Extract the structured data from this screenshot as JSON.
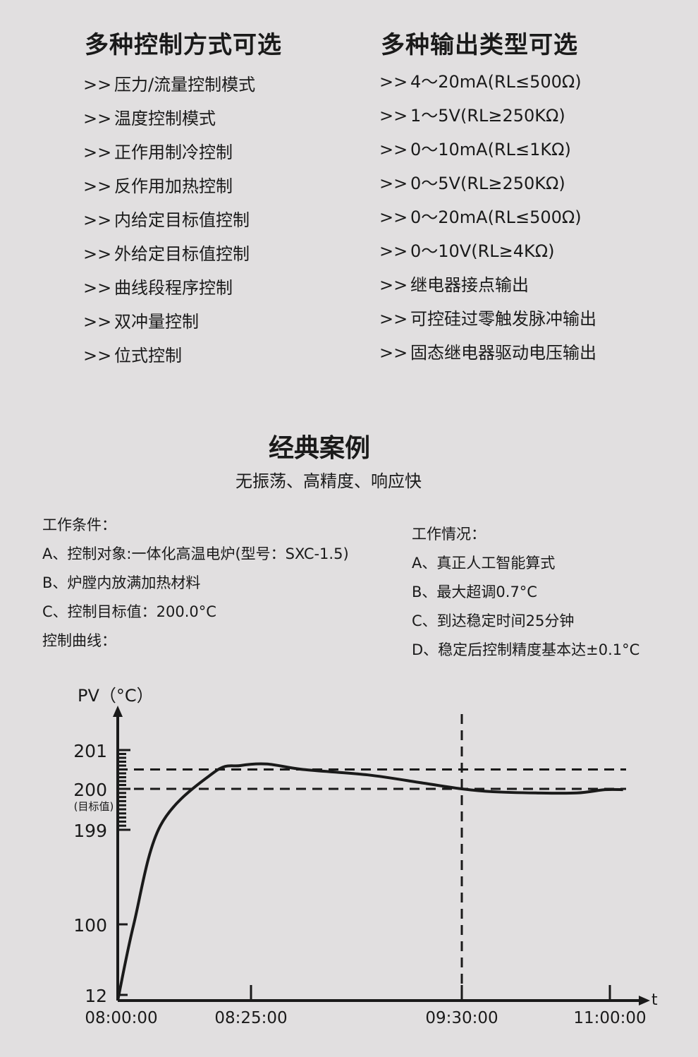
{
  "left_section": {
    "title": "多种控制方式可选",
    "marker": ">>",
    "items": [
      "压力/流量控制模式",
      "温度控制模式",
      "正作用制冷控制",
      "反作用加热控制",
      "内给定目标值控制",
      "外给定目标值控制",
      "曲线段程序控制",
      "双冲量控制",
      "位式控制"
    ]
  },
  "right_section": {
    "title": "多种输出类型可选",
    "marker": ">>",
    "items": [
      "4～20mA(RL≤500Ω)",
      "1～5V(RL≥250KΩ)",
      "0～10mA(RL≤1KΩ)",
      "0～5V(RL≥250KΩ)",
      "0～20mA(RL≤500Ω)",
      "0～10V(RL≥4KΩ)",
      "继电器接点输出",
      "可控硅过零触发脉冲输出",
      "固态继电器驱动电压输出"
    ]
  },
  "case": {
    "title": "经典案例",
    "subtitle": "无振荡、高精度、响应快"
  },
  "conditions": {
    "heading": "工作条件：",
    "items": [
      "A、控制对象:一体化高温电炉(型号：SXC-1.5)",
      "B、炉膛内放满加热材料",
      "C、控制目标值：200.0°C"
    ],
    "curve_heading": "控制曲线："
  },
  "performance": {
    "heading": "工作情况：",
    "items": [
      "A、真正人工智能算式",
      "B、最大超调0.7°C",
      "C、到达稳定时间25分钟",
      "D、稳定后控制精度基本达±0.1°C"
    ]
  },
  "chart_data": {
    "type": "line",
    "ylabel": "PV（°C）",
    "xlabel": "t",
    "y_ticks": [
      {
        "value": 12,
        "label": "12"
      },
      {
        "value": 100,
        "label": "100"
      },
      {
        "value": 199,
        "label": "199"
      },
      {
        "value": 200,
        "label": "200"
      },
      {
        "value": 201,
        "label": "201"
      }
    ],
    "y_target_note": "(目标值)",
    "x_ticks": [
      "08:00:00",
      "08:25:00",
      "09:30:00",
      "11:00:00"
    ],
    "reference_lines": {
      "horizontal": [
        200,
        200.5
      ],
      "vertical": [
        "09:30:00"
      ],
      "style": "dashed"
    },
    "series": [
      {
        "points": [
          [
            "08:00",
            12
          ],
          [
            "08:03",
            100
          ],
          [
            "08:08",
            199.1
          ],
          [
            "08:18",
            200.42
          ],
          [
            "08:23",
            200.6
          ],
          [
            "08:30",
            200.64
          ],
          [
            "08:41",
            200.5
          ],
          [
            "09:01",
            200.36
          ],
          [
            "09:18",
            200.15
          ],
          [
            "09:30",
            200.0
          ],
          [
            "09:49",
            199.93
          ],
          [
            "10:15",
            199.9
          ],
          [
            "10:40",
            199.9
          ],
          [
            "10:57",
            199.98
          ],
          [
            "11:08",
            199.98
          ]
        ]
      }
    ],
    "grid": false
  }
}
